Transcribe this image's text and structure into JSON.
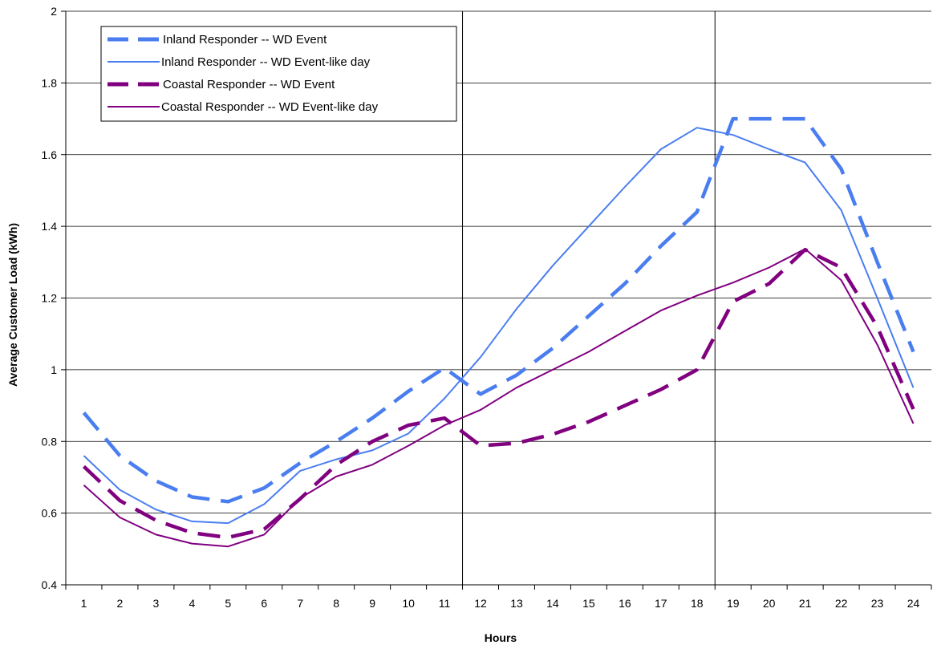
{
  "chart_data": {
    "type": "line",
    "xlabel": "Hours",
    "ylabel": "Average Customer Load (kWh)",
    "ylim": [
      0.4,
      2
    ],
    "yticks": [
      "0.4",
      "0.6",
      "0.8",
      "1",
      "1.2",
      "1.4",
      "1.6",
      "1.8",
      "2"
    ],
    "categories": [
      "1",
      "2",
      "3",
      "4",
      "5",
      "6",
      "7",
      "8",
      "9",
      "10",
      "11",
      "12",
      "13",
      "14",
      "15",
      "16",
      "17",
      "18",
      "19",
      "20",
      "21",
      "22",
      "23",
      "24"
    ],
    "grid": "horizontal",
    "legend_position": "top-left",
    "event_window_lines": [
      "12",
      "19"
    ],
    "series": [
      {
        "name": "Inland Responder -- WD Event",
        "color": "#4a7ef0",
        "style": "dashed-thick",
        "values": [
          0.88,
          0.76,
          0.69,
          0.645,
          0.632,
          0.67,
          0.74,
          0.8,
          0.865,
          0.94,
          1.005,
          0.932,
          0.985,
          1.06,
          1.15,
          1.24,
          1.345,
          1.44,
          1.7,
          1.7,
          1.7,
          1.56,
          1.3,
          1.05
        ]
      },
      {
        "name": "Inland Responder -- WD Event-like day",
        "color": "#4a7ef0",
        "style": "solid",
        "values": [
          0.76,
          0.665,
          0.61,
          0.577,
          0.572,
          0.625,
          0.718,
          0.75,
          0.775,
          0.822,
          0.92,
          1.035,
          1.17,
          1.29,
          1.4,
          1.51,
          1.615,
          1.675,
          1.655,
          1.615,
          1.578,
          1.445,
          1.2,
          0.95
        ]
      },
      {
        "name": "Coastal Responder -- WD Event",
        "color": "#800080",
        "style": "dashed-thick",
        "values": [
          0.73,
          0.635,
          0.58,
          0.545,
          0.532,
          0.555,
          0.64,
          0.735,
          0.8,
          0.845,
          0.865,
          0.788,
          0.795,
          0.82,
          0.855,
          0.9,
          0.945,
          1.0,
          1.19,
          1.24,
          1.335,
          1.285,
          1.12,
          0.89
        ]
      },
      {
        "name": "Coastal Responder -- WD Event-like day",
        "color": "#800080",
        "style": "solid",
        "values": [
          0.678,
          0.588,
          0.54,
          0.515,
          0.507,
          0.54,
          0.642,
          0.702,
          0.735,
          0.788,
          0.845,
          0.888,
          0.95,
          1.0,
          1.05,
          1.108,
          1.165,
          1.207,
          1.243,
          1.285,
          1.337,
          1.25,
          1.07,
          0.85
        ]
      }
    ]
  }
}
